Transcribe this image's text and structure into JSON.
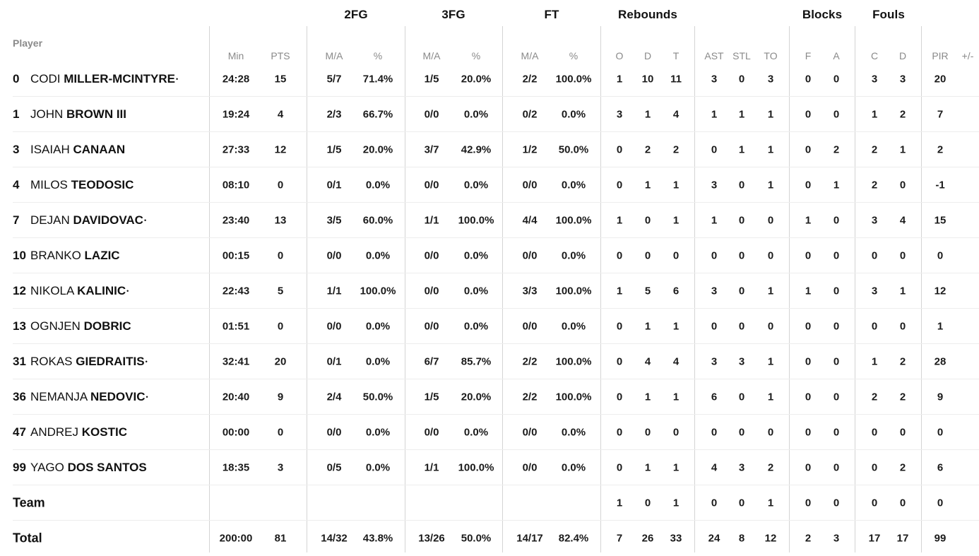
{
  "groups": {
    "fg2": "2FG",
    "fg3": "3FG",
    "ft": "FT",
    "rebounds": "Rebounds",
    "blocks": "Blocks",
    "fouls": "Fouls"
  },
  "header": {
    "player": "Player",
    "cols": [
      "Min",
      "PTS",
      "M/A",
      "%",
      "M/A",
      "%",
      "M/A",
      "%",
      "O",
      "D",
      "T",
      "AST",
      "STL",
      "TO",
      "F",
      "A",
      "C",
      "D",
      "PIR",
      "+/-"
    ]
  },
  "players": [
    {
      "num": "0",
      "first": "CODI",
      "last": "MILLER-MCINTYRE",
      "starter": true,
      "stats": [
        "24:28",
        "15",
        "5/7",
        "71.4%",
        "1/5",
        "20.0%",
        "2/2",
        "100.0%",
        "1",
        "10",
        "11",
        "3",
        "0",
        "3",
        "0",
        "0",
        "3",
        "3",
        "20",
        ""
      ]
    },
    {
      "num": "1",
      "first": "JOHN",
      "last": "BROWN III",
      "starter": false,
      "stats": [
        "19:24",
        "4",
        "2/3",
        "66.7%",
        "0/0",
        "0.0%",
        "0/2",
        "0.0%",
        "3",
        "1",
        "4",
        "1",
        "1",
        "1",
        "0",
        "0",
        "1",
        "2",
        "7",
        ""
      ]
    },
    {
      "num": "3",
      "first": "ISAIAH",
      "last": "CANAAN",
      "starter": false,
      "stats": [
        "27:33",
        "12",
        "1/5",
        "20.0%",
        "3/7",
        "42.9%",
        "1/2",
        "50.0%",
        "0",
        "2",
        "2",
        "0",
        "1",
        "1",
        "0",
        "2",
        "2",
        "1",
        "2",
        ""
      ]
    },
    {
      "num": "4",
      "first": "MILOS",
      "last": "TEODOSIC",
      "starter": false,
      "stats": [
        "08:10",
        "0",
        "0/1",
        "0.0%",
        "0/0",
        "0.0%",
        "0/0",
        "0.0%",
        "0",
        "1",
        "1",
        "3",
        "0",
        "1",
        "0",
        "1",
        "2",
        "0",
        "-1",
        ""
      ]
    },
    {
      "num": "7",
      "first": "DEJAN",
      "last": "DAVIDOVAC",
      "starter": true,
      "stats": [
        "23:40",
        "13",
        "3/5",
        "60.0%",
        "1/1",
        "100.0%",
        "4/4",
        "100.0%",
        "1",
        "0",
        "1",
        "1",
        "0",
        "0",
        "1",
        "0",
        "3",
        "4",
        "15",
        ""
      ]
    },
    {
      "num": "10",
      "first": "BRANKO",
      "last": "LAZIC",
      "starter": false,
      "stats": [
        "00:15",
        "0",
        "0/0",
        "0.0%",
        "0/0",
        "0.0%",
        "0/0",
        "0.0%",
        "0",
        "0",
        "0",
        "0",
        "0",
        "0",
        "0",
        "0",
        "0",
        "0",
        "0",
        ""
      ]
    },
    {
      "num": "12",
      "first": "NIKOLA",
      "last": "KALINIC",
      "starter": true,
      "stats": [
        "22:43",
        "5",
        "1/1",
        "100.0%",
        "0/0",
        "0.0%",
        "3/3",
        "100.0%",
        "1",
        "5",
        "6",
        "3",
        "0",
        "1",
        "1",
        "0",
        "3",
        "1",
        "12",
        ""
      ]
    },
    {
      "num": "13",
      "first": "OGNJEN",
      "last": "DOBRIC",
      "starter": false,
      "stats": [
        "01:51",
        "0",
        "0/0",
        "0.0%",
        "0/0",
        "0.0%",
        "0/0",
        "0.0%",
        "0",
        "1",
        "1",
        "0",
        "0",
        "0",
        "0",
        "0",
        "0",
        "0",
        "1",
        ""
      ]
    },
    {
      "num": "31",
      "first": "ROKAS",
      "last": "GIEDRAITIS",
      "starter": true,
      "stats": [
        "32:41",
        "20",
        "0/1",
        "0.0%",
        "6/7",
        "85.7%",
        "2/2",
        "100.0%",
        "0",
        "4",
        "4",
        "3",
        "3",
        "1",
        "0",
        "0",
        "1",
        "2",
        "28",
        ""
      ]
    },
    {
      "num": "36",
      "first": "NEMANJA",
      "last": "NEDOVIC",
      "starter": true,
      "stats": [
        "20:40",
        "9",
        "2/4",
        "50.0%",
        "1/5",
        "20.0%",
        "2/2",
        "100.0%",
        "0",
        "1",
        "1",
        "6",
        "0",
        "1",
        "0",
        "0",
        "2",
        "2",
        "9",
        ""
      ]
    },
    {
      "num": "47",
      "first": "ANDREJ",
      "last": "KOSTIC",
      "starter": false,
      "stats": [
        "00:00",
        "0",
        "0/0",
        "0.0%",
        "0/0",
        "0.0%",
        "0/0",
        "0.0%",
        "0",
        "0",
        "0",
        "0",
        "0",
        "0",
        "0",
        "0",
        "0",
        "0",
        "0",
        ""
      ]
    },
    {
      "num": "99",
      "first": "YAGO",
      "last": "DOS SANTOS",
      "starter": false,
      "stats": [
        "18:35",
        "3",
        "0/5",
        "0.0%",
        "1/1",
        "100.0%",
        "0/0",
        "0.0%",
        "0",
        "1",
        "1",
        "4",
        "3",
        "2",
        "0",
        "0",
        "0",
        "2",
        "6",
        ""
      ]
    }
  ],
  "team": {
    "label": "Team",
    "stats": [
      "",
      "",
      "",
      "",
      "",
      "",
      "",
      "",
      "1",
      "0",
      "1",
      "0",
      "0",
      "1",
      "0",
      "0",
      "0",
      "0",
      "0",
      ""
    ]
  },
  "total": {
    "label": "Total",
    "stats": [
      "200:00",
      "81",
      "14/32",
      "43.8%",
      "13/26",
      "50.0%",
      "14/17",
      "82.4%",
      "7",
      "26",
      "33",
      "24",
      "8",
      "12",
      "2",
      "3",
      "17",
      "17",
      "99",
      ""
    ]
  },
  "starter_mark": "•"
}
